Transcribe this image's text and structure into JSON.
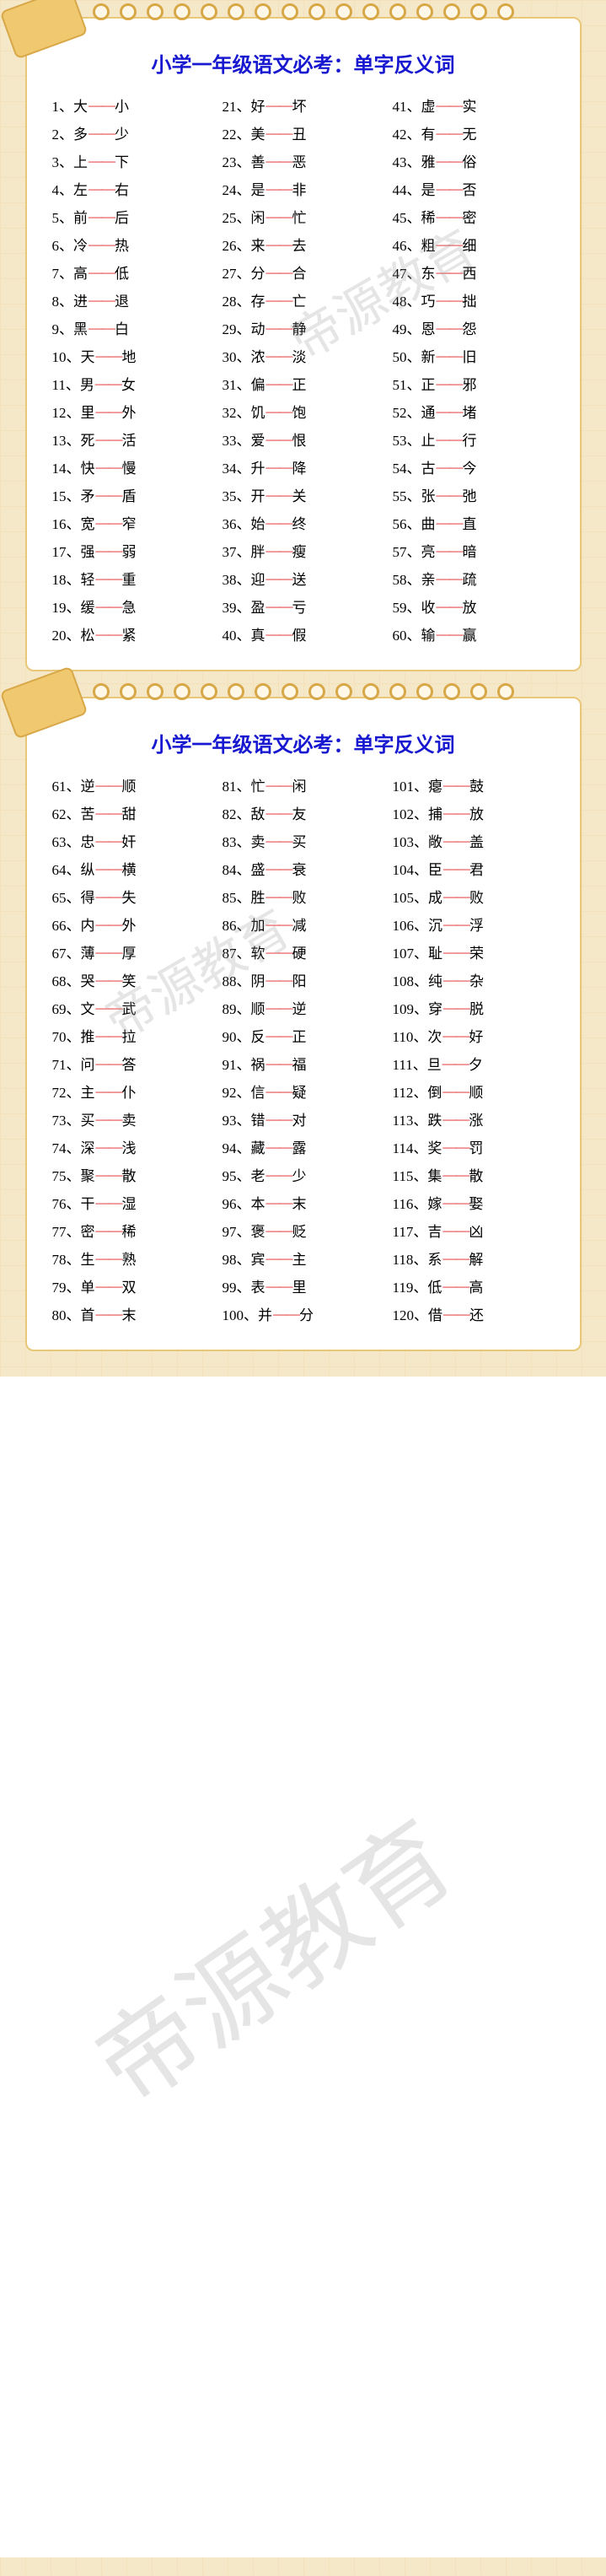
{
  "title": "小学一年级语文必考：单字反义词",
  "watermark": "帝源教育",
  "dash": "——",
  "cards": [
    {
      "cols": [
        [
          {
            "n": "1",
            "a": "大",
            "b": "小"
          },
          {
            "n": "2",
            "a": "多",
            "b": "少"
          },
          {
            "n": "3",
            "a": "上",
            "b": "下"
          },
          {
            "n": "4",
            "a": "左",
            "b": "右"
          },
          {
            "n": "5",
            "a": "前",
            "b": "后"
          },
          {
            "n": "6",
            "a": "冷",
            "b": "热"
          },
          {
            "n": "7",
            "a": "高",
            "b": "低"
          },
          {
            "n": "8",
            "a": "进",
            "b": "退"
          },
          {
            "n": "9",
            "a": "黑",
            "b": "白"
          },
          {
            "n": "10",
            "a": "天",
            "b": "地"
          },
          {
            "n": "11",
            "a": "男",
            "b": "女"
          },
          {
            "n": "12",
            "a": "里",
            "b": "外"
          },
          {
            "n": "13",
            "a": "死",
            "b": "活"
          },
          {
            "n": "14",
            "a": "快",
            "b": "慢"
          },
          {
            "n": "15",
            "a": "矛",
            "b": "盾"
          },
          {
            "n": "16",
            "a": "宽",
            "b": "窄"
          },
          {
            "n": "17",
            "a": "强",
            "b": "弱"
          },
          {
            "n": "18",
            "a": "轻",
            "b": "重"
          },
          {
            "n": "19",
            "a": "缓",
            "b": "急"
          },
          {
            "n": "20",
            "a": "松",
            "b": "紧"
          }
        ],
        [
          {
            "n": "21",
            "a": "好",
            "b": "坏"
          },
          {
            "n": "22",
            "a": "美",
            "b": "丑"
          },
          {
            "n": "23",
            "a": "善",
            "b": "恶"
          },
          {
            "n": "24",
            "a": "是",
            "b": "非"
          },
          {
            "n": "25",
            "a": "闲",
            "b": "忙"
          },
          {
            "n": "26",
            "a": "来",
            "b": "去"
          },
          {
            "n": "27",
            "a": "分",
            "b": "合"
          },
          {
            "n": "28",
            "a": "存",
            "b": "亡"
          },
          {
            "n": "29",
            "a": "动",
            "b": "静"
          },
          {
            "n": "30",
            "a": "浓",
            "b": "淡"
          },
          {
            "n": "31",
            "a": "偏",
            "b": "正"
          },
          {
            "n": "32",
            "a": "饥",
            "b": "饱"
          },
          {
            "n": "33",
            "a": "爱",
            "b": "恨"
          },
          {
            "n": "34",
            "a": "升",
            "b": "降"
          },
          {
            "n": "35",
            "a": "开",
            "b": "关"
          },
          {
            "n": "36",
            "a": "始",
            "b": "终"
          },
          {
            "n": "37",
            "a": "胖",
            "b": "瘦"
          },
          {
            "n": "38",
            "a": "迎",
            "b": "送"
          },
          {
            "n": "39",
            "a": "盈",
            "b": "亏"
          },
          {
            "n": "40",
            "a": "真",
            "b": "假"
          }
        ],
        [
          {
            "n": "41",
            "a": "虚",
            "b": "实"
          },
          {
            "n": "42",
            "a": "有",
            "b": "无"
          },
          {
            "n": "43",
            "a": "雅",
            "b": "俗"
          },
          {
            "n": "44",
            "a": "是",
            "b": "否"
          },
          {
            "n": "45",
            "a": "稀",
            "b": "密"
          },
          {
            "n": "46",
            "a": "粗",
            "b": "细"
          },
          {
            "n": "47",
            "a": "东",
            "b": "西"
          },
          {
            "n": "48",
            "a": "巧",
            "b": "拙"
          },
          {
            "n": "49",
            "a": "恩",
            "b": "怨"
          },
          {
            "n": "50",
            "a": "新",
            "b": "旧"
          },
          {
            "n": "51",
            "a": "正",
            "b": "邪"
          },
          {
            "n": "52",
            "a": "通",
            "b": "堵"
          },
          {
            "n": "53",
            "a": "止",
            "b": "行"
          },
          {
            "n": "54",
            "a": "古",
            "b": "今"
          },
          {
            "n": "55",
            "a": "张",
            "b": "弛"
          },
          {
            "n": "56",
            "a": "曲",
            "b": "直"
          },
          {
            "n": "57",
            "a": "亮",
            "b": "暗"
          },
          {
            "n": "58",
            "a": "亲",
            "b": "疏"
          },
          {
            "n": "59",
            "a": "收",
            "b": "放"
          },
          {
            "n": "60",
            "a": "输",
            "b": "赢"
          }
        ]
      ]
    },
    {
      "cols": [
        [
          {
            "n": "61",
            "a": "逆",
            "b": "顺"
          },
          {
            "n": "62",
            "a": "苦",
            "b": "甜"
          },
          {
            "n": "63",
            "a": "忠",
            "b": "奸"
          },
          {
            "n": "64",
            "a": "纵",
            "b": "横"
          },
          {
            "n": "65",
            "a": "得",
            "b": "失"
          },
          {
            "n": "66",
            "a": "内",
            "b": "外"
          },
          {
            "n": "67",
            "a": "薄",
            "b": "厚"
          },
          {
            "n": "68",
            "a": "哭",
            "b": "笑"
          },
          {
            "n": "69",
            "a": "文",
            "b": "武"
          },
          {
            "n": "70",
            "a": "推",
            "b": "拉"
          },
          {
            "n": "71",
            "a": "问",
            "b": "答"
          },
          {
            "n": "72",
            "a": "主",
            "b": "仆"
          },
          {
            "n": "73",
            "a": "买",
            "b": "卖"
          },
          {
            "n": "74",
            "a": "深",
            "b": "浅"
          },
          {
            "n": "75",
            "a": "聚",
            "b": "散"
          },
          {
            "n": "76",
            "a": "干",
            "b": "湿"
          },
          {
            "n": "77",
            "a": "密",
            "b": "稀"
          },
          {
            "n": "78",
            "a": "生",
            "b": "熟"
          },
          {
            "n": "79",
            "a": "单",
            "b": "双"
          },
          {
            "n": "80",
            "a": "首",
            "b": "末"
          }
        ],
        [
          {
            "n": "81",
            "a": "忙",
            "b": "闲"
          },
          {
            "n": "82",
            "a": "敌",
            "b": "友"
          },
          {
            "n": "83",
            "a": "卖",
            "b": "买"
          },
          {
            "n": "84",
            "a": "盛",
            "b": "衰"
          },
          {
            "n": "85",
            "a": "胜",
            "b": "败"
          },
          {
            "n": "86",
            "a": "加",
            "b": "减"
          },
          {
            "n": "87",
            "a": "软",
            "b": "硬"
          },
          {
            "n": "88",
            "a": "阴",
            "b": "阳"
          },
          {
            "n": "89",
            "a": "顺",
            "b": "逆"
          },
          {
            "n": "90",
            "a": "反",
            "b": "正"
          },
          {
            "n": "91",
            "a": "祸",
            "b": "福"
          },
          {
            "n": "92",
            "a": "信",
            "b": "疑"
          },
          {
            "n": "93",
            "a": "错",
            "b": "对"
          },
          {
            "n": "94",
            "a": "藏",
            "b": "露"
          },
          {
            "n": "95",
            "a": "老",
            "b": "少"
          },
          {
            "n": "96",
            "a": "本",
            "b": "末"
          },
          {
            "n": "97",
            "a": "褒",
            "b": "贬"
          },
          {
            "n": "98",
            "a": "宾",
            "b": "主"
          },
          {
            "n": "99",
            "a": "表",
            "b": "里"
          },
          {
            "n": "100",
            "a": "并",
            "b": "分"
          }
        ],
        [
          {
            "n": "101",
            "a": "瘪",
            "b": "鼓"
          },
          {
            "n": "102",
            "a": "捕",
            "b": "放"
          },
          {
            "n": "103",
            "a": "敞",
            "b": "盖"
          },
          {
            "n": "104",
            "a": "臣",
            "b": "君"
          },
          {
            "n": "105",
            "a": "成",
            "b": "败"
          },
          {
            "n": "106",
            "a": "沉",
            "b": "浮"
          },
          {
            "n": "107",
            "a": "耻",
            "b": "荣"
          },
          {
            "n": "108",
            "a": "纯",
            "b": "杂"
          },
          {
            "n": "109",
            "a": "穿",
            "b": "脱"
          },
          {
            "n": "110",
            "a": "次",
            "b": "好"
          },
          {
            "n": "111",
            "a": "旦",
            "b": "夕"
          },
          {
            "n": "112",
            "a": "倒",
            "b": "顺"
          },
          {
            "n": "113",
            "a": "跌",
            "b": "涨"
          },
          {
            "n": "114",
            "a": "奖",
            "b": "罚"
          },
          {
            "n": "115",
            "a": "集",
            "b": "散"
          },
          {
            "n": "116",
            "a": "嫁",
            "b": "娶"
          },
          {
            "n": "117",
            "a": "吉",
            "b": "凶"
          },
          {
            "n": "118",
            "a": "系",
            "b": "解"
          },
          {
            "n": "119",
            "a": "低",
            "b": "高"
          },
          {
            "n": "120",
            "a": "借",
            "b": "还"
          }
        ]
      ]
    }
  ]
}
